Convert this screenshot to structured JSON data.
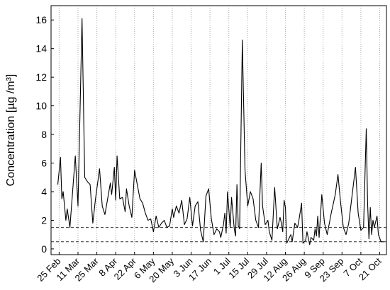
{
  "chart_data": {
    "type": "line",
    "ylabel": "Concentration [µg /m³]",
    "x": [
      "24 Feb",
      "26 Feb",
      "27 Feb",
      "28 Feb",
      "2 Mar",
      "3 Mar",
      "5 Mar",
      "9 Mar",
      "11 Mar",
      "14 Mar",
      "16 Mar",
      "18 Mar",
      "20 Mar",
      "22 Mar",
      "24 Mar",
      "27 Mar",
      "29 Mar",
      "31 Mar",
      "2 Apr",
      "4 Apr",
      "5 Apr",
      "7 Apr",
      "8 Apr",
      "9 Apr",
      "11 Apr",
      "13 Apr",
      "15 Apr",
      "16 Apr",
      "18 Apr",
      "20 Apr",
      "22 Apr",
      "24 Apr",
      "26 Apr",
      "28 Apr",
      "30 Apr",
      "2 May",
      "4 May",
      "6 May",
      "8 May",
      "10 May",
      "12 May",
      "14 May",
      "16 May",
      "18 May",
      "20 May",
      "21 May",
      "23 May",
      "25 May",
      "27 May",
      "29 May",
      "31 May",
      "2 Jun",
      "4 Jun",
      "6 Jun",
      "8 Jun",
      "10 Jun",
      "12 Jun",
      "14 Jun",
      "16 Jun",
      "18 Jun",
      "20 Jun",
      "22 Jun",
      "24 Jun",
      "25 Jun",
      "27 Jun",
      "28 Jun",
      "29 Jun",
      "30 Jun",
      "2 Jul",
      "3 Jul",
      "5 Jul",
      "6 Jul",
      "7 Jul",
      "8 Jul",
      "9 Jul",
      "11 Jul",
      "13 Jul",
      "15 Jul",
      "17 Jul",
      "19 Jul",
      "21 Jul",
      "23 Jul",
      "25 Jul",
      "26 Jul",
      "28 Jul",
      "30 Jul",
      "31 Jul",
      "2 Aug",
      "4 Aug",
      "6 Aug",
      "8 Aug",
      "9 Aug",
      "10 Aug",
      "11 Aug",
      "12 Aug",
      "13 Aug",
      "15 Aug",
      "16 Aug",
      "17 Aug",
      "19 Aug",
      "21 Aug",
      "22 Aug",
      "24 Aug",
      "25 Aug",
      "27 Aug",
      "28 Aug",
      "30 Aug",
      "31 Aug",
      "2 Sep",
      "3 Sep",
      "4 Sep",
      "5 Sep",
      "6 Sep",
      "8 Sep",
      "10 Sep",
      "12 Sep",
      "15 Sep",
      "18 Sep",
      "20 Sep",
      "22 Sep",
      "24 Sep",
      "26 Sep",
      "28 Sep",
      "3 Oct",
      "5 Oct",
      "7 Oct",
      "9 Oct",
      "11 Oct",
      "12 Oct",
      "13 Oct",
      "14 Oct",
      "15 Oct",
      "16 Oct",
      "17 Oct",
      "19 Oct",
      "20 Oct",
      "22 Oct",
      "24 Oct"
    ],
    "values": [
      4.5,
      6.4,
      3.5,
      4.0,
      2.0,
      2.8,
      1.5,
      6.5,
      3.0,
      16.1,
      5.0,
      4.7,
      4.5,
      1.8,
      3.5,
      5.6,
      3.0,
      2.4,
      3.5,
      4.6,
      3.8,
      5.7,
      3.4,
      6.5,
      3.5,
      3.6,
      2.6,
      4.2,
      3.0,
      2.2,
      5.5,
      4.5,
      3.5,
      3.2,
      2.5,
      2.0,
      2.1,
      1.2,
      2.3,
      1.5,
      1.8,
      2.0,
      1.5,
      1.6,
      2.8,
      2.2,
      3.0,
      2.5,
      3.4,
      1.7,
      2.1,
      3.6,
      1.6,
      3.0,
      3.3,
      1.3,
      0.5,
      3.7,
      4.2,
      2.1,
      1.0,
      1.4,
      1.2,
      0.8,
      1.7,
      2.5,
      1.1,
      4.0,
      1.5,
      3.6,
      1.4,
      0.9,
      4.5,
      1.6,
      1.4,
      14.6,
      5.5,
      3.0,
      4.0,
      3.5,
      2.0,
      1.5,
      6.0,
      3.0,
      1.7,
      2.0,
      1.2,
      0.6,
      4.3,
      1.4,
      2.2,
      1.8,
      1.2,
      3.4,
      2.9,
      0.4,
      0.8,
      1.0,
      0.5,
      1.8,
      1.5,
      2.0,
      3.2,
      0.4,
      0.6,
      1.2,
      0.3,
      0.8,
      0.6,
      1.4,
      0.9,
      2.3,
      0.8,
      3.8,
      1.8,
      1.0,
      2.5,
      3.8,
      5.2,
      3.2,
      1.5,
      1.0,
      1.8,
      5.7,
      2.5,
      1.3,
      1.5,
      8.4,
      3.2,
      0.7,
      2.9,
      1.0,
      2.0,
      1.5,
      2.3,
      1.0,
      0.5,
      0.5
    ],
    "color": "#000000",
    "xlim": [
      "19 Feb",
      "26 Oct"
    ],
    "xticks": [
      "25 Feb",
      "11 Mar",
      "25 Mar",
      "8 Apr",
      "22 Apr",
      "6 May",
      "20 May",
      "3 Jun",
      "17 Jun",
      "1 Jul",
      "15 Jul",
      "29 Jul",
      "12 Aug",
      "26 Aug",
      "9 Sep",
      "23 Sep",
      "7 Oct",
      "21 Oct"
    ],
    "ylim": [
      -0.4,
      17
    ],
    "yticks": [
      0,
      2,
      4,
      6,
      8,
      10,
      12,
      14,
      16
    ],
    "grid": "x",
    "reference_lines": [
      1.5,
      0.5
    ]
  }
}
